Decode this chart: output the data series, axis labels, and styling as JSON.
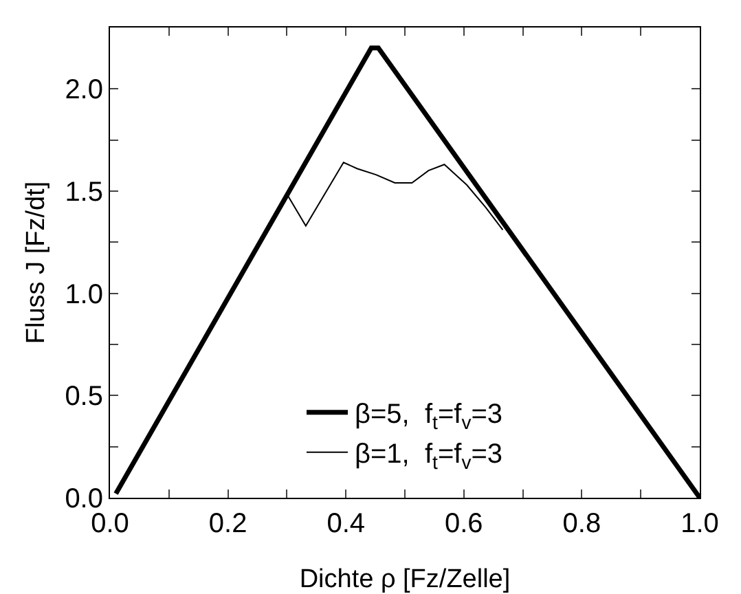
{
  "chart_data": {
    "type": "line",
    "xlabel": "Dichte ρ [Fz/Zelle]",
    "ylabel": "Fluss J [Fz/dt]",
    "xlim": [
      0,
      1.0
    ],
    "ylim": [
      0,
      2.3
    ],
    "xticks": [
      {
        "value": 0,
        "label": "0.0"
      },
      {
        "value": 0.1,
        "label": null
      },
      {
        "value": 0.2,
        "label": "0.2"
      },
      {
        "value": 0.3,
        "label": null
      },
      {
        "value": 0.4,
        "label": "0.4"
      },
      {
        "value": 0.5,
        "label": null
      },
      {
        "value": 0.6,
        "label": "0.6"
      },
      {
        "value": 0.7,
        "label": null
      },
      {
        "value": 0.8,
        "label": "0.8"
      },
      {
        "value": 0.9,
        "label": null
      },
      {
        "value": 1.0,
        "label": "1.0"
      }
    ],
    "yticks": [
      {
        "value": 0,
        "label": "0.0"
      },
      {
        "value": 0.25,
        "label": null
      },
      {
        "value": 0.5,
        "label": "0.5"
      },
      {
        "value": 0.75,
        "label": null
      },
      {
        "value": 1.0,
        "label": "1.0"
      },
      {
        "value": 1.25,
        "label": null
      },
      {
        "value": 1.5,
        "label": "1.5"
      },
      {
        "value": 1.75,
        "label": null
      },
      {
        "value": 2.0,
        "label": "2.0"
      }
    ],
    "grid": false,
    "legend": "bottom",
    "marker": "none",
    "line_style": "solid",
    "series": [
      {
        "name": "β=5,  f$_{t}$=f$_{v}$=3",
        "color": "#000000",
        "x": [
          0.01,
          0.443,
          0.455,
          1.0
        ],
        "values": [
          0.02,
          2.2,
          2.2,
          0.0
        ]
      },
      {
        "name": "β=1,  f$_{t}$=f$_{v}$=3",
        "color": "#000000",
        "x": [
          0.301,
          0.332,
          0.396,
          0.419,
          0.451,
          0.483,
          0.512,
          0.54,
          0.567,
          0.605,
          0.637,
          0.666
        ],
        "values": [
          1.48,
          1.33,
          1.64,
          1.61,
          1.58,
          1.54,
          1.54,
          1.6,
          1.63,
          1.53,
          1.42,
          1.31
        ]
      }
    ]
  }
}
